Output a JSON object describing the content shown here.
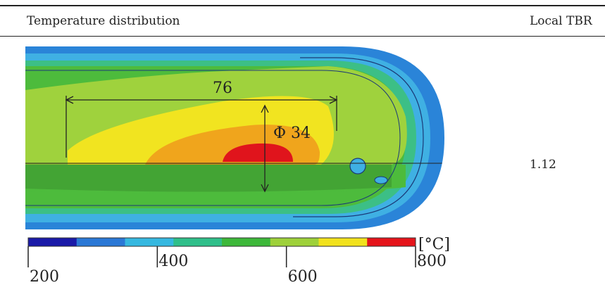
{
  "table": {
    "col_headers": [
      "Temperature distribution",
      "Local TBR"
    ],
    "rows": [
      {
        "local_tbr": "1.12"
      }
    ]
  },
  "figure": {
    "dimension_length": "76",
    "dimension_diameter": "Φ 34",
    "colorbar": {
      "unit": "[°C]",
      "tick_labels": [
        "200",
        "400",
        "600",
        "800"
      ],
      "tick_values": [
        200,
        400,
        600,
        800
      ],
      "min": 200,
      "max": 800,
      "colors": [
        "#1a1aa8",
        "#2a78d6",
        "#35b8e0",
        "#2fbf8a",
        "#3db83a",
        "#9ed13a",
        "#f2e21d",
        "#e5141b"
      ]
    },
    "zone_colors": {
      "outer_blue": "#2a84d8",
      "light_blue": "#3fb0e3",
      "teal": "#3cbf86",
      "green": "#4dbb3c",
      "yellow_green": "#9fd23d",
      "yellow": "#f1e420",
      "orange": "#f0a51c",
      "dark_orange": "#e77a1a",
      "red": "#e0141c"
    }
  }
}
